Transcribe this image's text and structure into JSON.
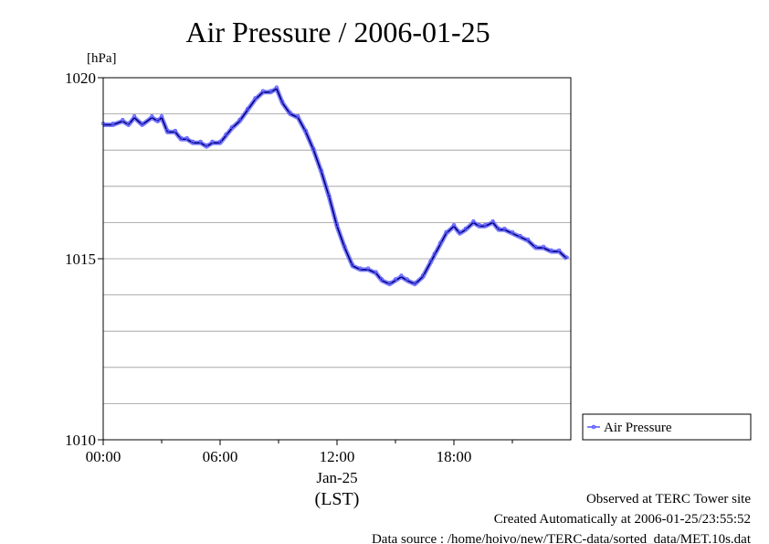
{
  "chart_data": {
    "type": "line",
    "title": "Air Pressure / 2006-01-25",
    "ylabel": "[hPa]",
    "xlabel": "(LST)",
    "ylim": [
      1010,
      1020
    ],
    "xlim": [
      0,
      24
    ],
    "yticks": [
      {
        "value": 1020,
        "label": "1020"
      },
      {
        "value": 1015,
        "label": "1015"
      },
      {
        "value": 1010,
        "label": "1010"
      }
    ],
    "xticks": [
      {
        "value": 0,
        "label": "00:00"
      },
      {
        "value": 6,
        "label": "06:00"
      },
      {
        "value": 12,
        "label": "12:00"
      },
      {
        "value": 18,
        "label": "18:00"
      }
    ],
    "date_label": "Jan-25",
    "grid": true,
    "legend_position": "right",
    "series": [
      {
        "name": "Air Pressure",
        "color": "#5555ff",
        "x": [
          0,
          0.5,
          1,
          1.3,
          1.6,
          2,
          2.5,
          2.8,
          3.0,
          3.3,
          3.7,
          4.0,
          4.3,
          4.6,
          5.0,
          5.3,
          5.6,
          6.0,
          6.3,
          6.6,
          7.0,
          7.4,
          7.8,
          8.2,
          8.6,
          8.9,
          9.2,
          9.6,
          10.0,
          10.4,
          10.8,
          11.2,
          11.6,
          12.0,
          12.4,
          12.8,
          13.2,
          13.6,
          14.0,
          14.3,
          14.7,
          15.0,
          15.3,
          15.6,
          16.0,
          16.4,
          16.8,
          17.0,
          17.3,
          17.6,
          18.0,
          18.3,
          18.6,
          19.0,
          19.3,
          19.6,
          20.0,
          20.3,
          20.6,
          21.0,
          21.4,
          21.8,
          22.2,
          22.6,
          23.0,
          23.4,
          23.8
        ],
        "values": [
          1018.7,
          1018.7,
          1018.8,
          1018.7,
          1018.9,
          1018.7,
          1018.9,
          1018.8,
          1018.9,
          1018.5,
          1018.5,
          1018.3,
          1018.3,
          1018.2,
          1018.2,
          1018.1,
          1018.2,
          1018.2,
          1018.4,
          1018.6,
          1018.8,
          1019.1,
          1019.4,
          1019.6,
          1019.6,
          1019.7,
          1019.3,
          1019.0,
          1018.9,
          1018.5,
          1018.0,
          1017.4,
          1016.7,
          1015.9,
          1015.3,
          1014.8,
          1014.7,
          1014.7,
          1014.6,
          1014.4,
          1014.3,
          1014.4,
          1014.5,
          1014.4,
          1014.3,
          1014.5,
          1014.9,
          1015.1,
          1015.4,
          1015.7,
          1015.9,
          1015.7,
          1015.8,
          1016.0,
          1015.9,
          1015.9,
          1016.0,
          1015.8,
          1015.8,
          1015.7,
          1015.6,
          1015.5,
          1015.3,
          1015.3,
          1015.2,
          1015.2,
          1015.0
        ]
      }
    ]
  },
  "footer": {
    "line1": "Observed at TERC Tower site",
    "line2": "Created Automatically at 2006-01-25/23:55:52",
    "line3": "Data source : /home/hoivo/new/TERC-data/sorted_data/MET.10s.dat"
  },
  "colors": {
    "series": "#5555ff",
    "series_dark": "#000080",
    "grid": "#999999"
  }
}
